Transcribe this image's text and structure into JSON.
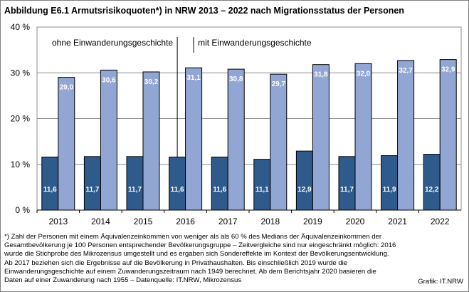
{
  "title": "Abbildung E6.1  Armutsrisikoquoten*) in NRW 2013 – 2022 nach Migrationsstatus der Personen",
  "chart_data": {
    "type": "bar",
    "categories": [
      "2013",
      "2014",
      "2015",
      "2016",
      "2017",
      "2018",
      "2019",
      "2020",
      "2021",
      "2022"
    ],
    "series": [
      {
        "name": "ohne Einwanderungsgeschichte",
        "values": [
          11.6,
          11.7,
          11.7,
          11.6,
          11.6,
          11.1,
          12.9,
          11.7,
          11.9,
          12.2
        ],
        "labels": [
          "11,6",
          "11,7",
          "11,7",
          "11,6",
          "11,6",
          "11,1",
          "12,9",
          "11,7",
          "11,9",
          "12,2"
        ],
        "color": "#2f5b8c"
      },
      {
        "name": "mit Einwanderungsgeschichte",
        "values": [
          29.0,
          30.6,
          30.2,
          31.1,
          30.8,
          29.7,
          31.8,
          32.0,
          32.7,
          32.9
        ],
        "labels": [
          "29,0",
          "30,6",
          "30,2",
          "31,1",
          "30,8",
          "29,7",
          "31,8",
          "32,0",
          "32,7",
          "32,9"
        ],
        "color": "#92a6d4"
      }
    ],
    "ylim": [
      0,
      40
    ],
    "yticks": [
      "0 %",
      "10 %",
      "20 %",
      "30 %",
      "40 %"
    ],
    "grid": true,
    "legend": "top-left, labels pointing to 2016 bars"
  },
  "footnote": [
    "*) Zahl der Personen mit einem Äquivalenzeinkommen  von weniger als als 60 % des Medians der Äquivalenzeinkommen  der",
    "Gesamtbevölkerung  je 100 Personen entsprechender Bevölkerungsgruppe – Zeitvergleiche sind nur eingeschränkt möglich: 2016",
    "wurde die Stichprobe des Mikrozensus umgestellt und es ergaben sich Sondereffekte im Kontext der Bevölkerungsentwicklung.",
    "Ab 2017 beziehen sich die Ergebnisse auf die Bevölkerung in Privathaushalten.  Bis einschließlich  2019 wurde die",
    "Einwanderungsgeschichte  auf einem  Zuwanderungszeitraum nach 1949 berechnet. Ab dem Berichtsjahr 2020 basieren die",
    "Daten  auf einer Zuwanderung nach 1955 – Datenquelle:  IT.NRW,  Mikrozensus"
  ],
  "source": "Grafik: IT.NRW"
}
